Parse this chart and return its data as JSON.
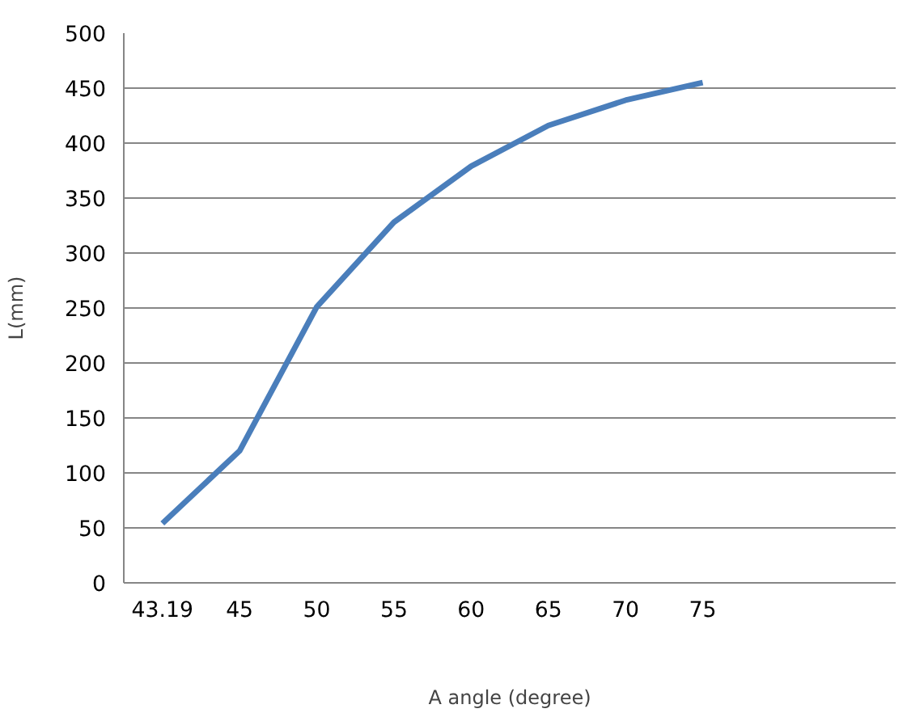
{
  "chart_data": {
    "type": "line",
    "xlabel": "A angle (degree)",
    "ylabel": "L(mm)",
    "categories": [
      "43.19",
      "45",
      "50",
      "55",
      "60",
      "65",
      "70",
      "75",
      null,
      null
    ],
    "series": [
      {
        "color": "#4a7ebb",
        "values": [
          54,
          120,
          251,
          328,
          379,
          416,
          439,
          455,
          null,
          null
        ]
      }
    ],
    "ylim": [
      0,
      500
    ],
    "yticks": [
      0,
      50,
      100,
      150,
      200,
      250,
      300,
      350,
      400,
      450,
      500
    ],
    "grid": "y",
    "marker": "none",
    "line_style": "solid"
  }
}
